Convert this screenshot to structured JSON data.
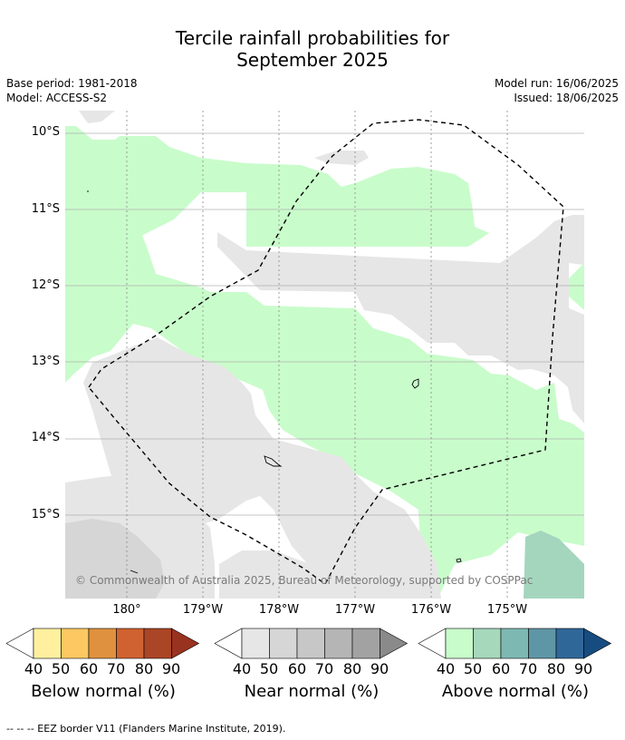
{
  "title_line1": "Tercile rainfall probabilities for",
  "title_line2": "September 2025",
  "base_period": "Base period: 1981-2018",
  "model": "Model: ACCESS-S2",
  "model_run": "Model run: 16/06/2025",
  "issued": "Issued: 18/06/2025",
  "lat_labels": [
    "10°S",
    "11°S",
    "12°S",
    "13°S",
    "14°S",
    "15°S"
  ],
  "lon_labels": [
    "180°",
    "179°W",
    "178°W",
    "177°W",
    "176°W",
    "175°W"
  ],
  "copyright": "© Commonwealth of Australia 2025, Bureau of Meteorology, supported by COSPPac",
  "legends": [
    {
      "label": "Below normal (%)",
      "colors": [
        "#fff0a0",
        "#fdc862",
        "#e0913f",
        "#cf6230",
        "#aa4526",
        "#9a3220"
      ],
      "ticks": [
        "40",
        "50",
        "60",
        "70",
        "80",
        "90"
      ]
    },
    {
      "label": "Near normal (%)",
      "colors": [
        "#e6e6e6",
        "#d6d6d6",
        "#c7c7c7",
        "#b5b5b5",
        "#a2a2a2",
        "#8a8a8a"
      ],
      "ticks": [
        "40",
        "50",
        "60",
        "70",
        "80",
        "90"
      ]
    },
    {
      "label": "Above normal (%)",
      "colors": [
        "#c9fccb",
        "#a6d8bb",
        "#7eb8b3",
        "#5e96a5",
        "#306799",
        "#174c80"
      ],
      "ticks": [
        "40",
        "50",
        "60",
        "70",
        "80",
        "90"
      ]
    }
  ],
  "footnote": "-- -- -- EEZ border V11 (Flanders Marine Institute, 2019).",
  "colors": {
    "above_40": "#c9fccb",
    "near_40": "#e6e6e6",
    "near_50": "#d6d6d6",
    "above_50": "#a4d6be"
  }
}
